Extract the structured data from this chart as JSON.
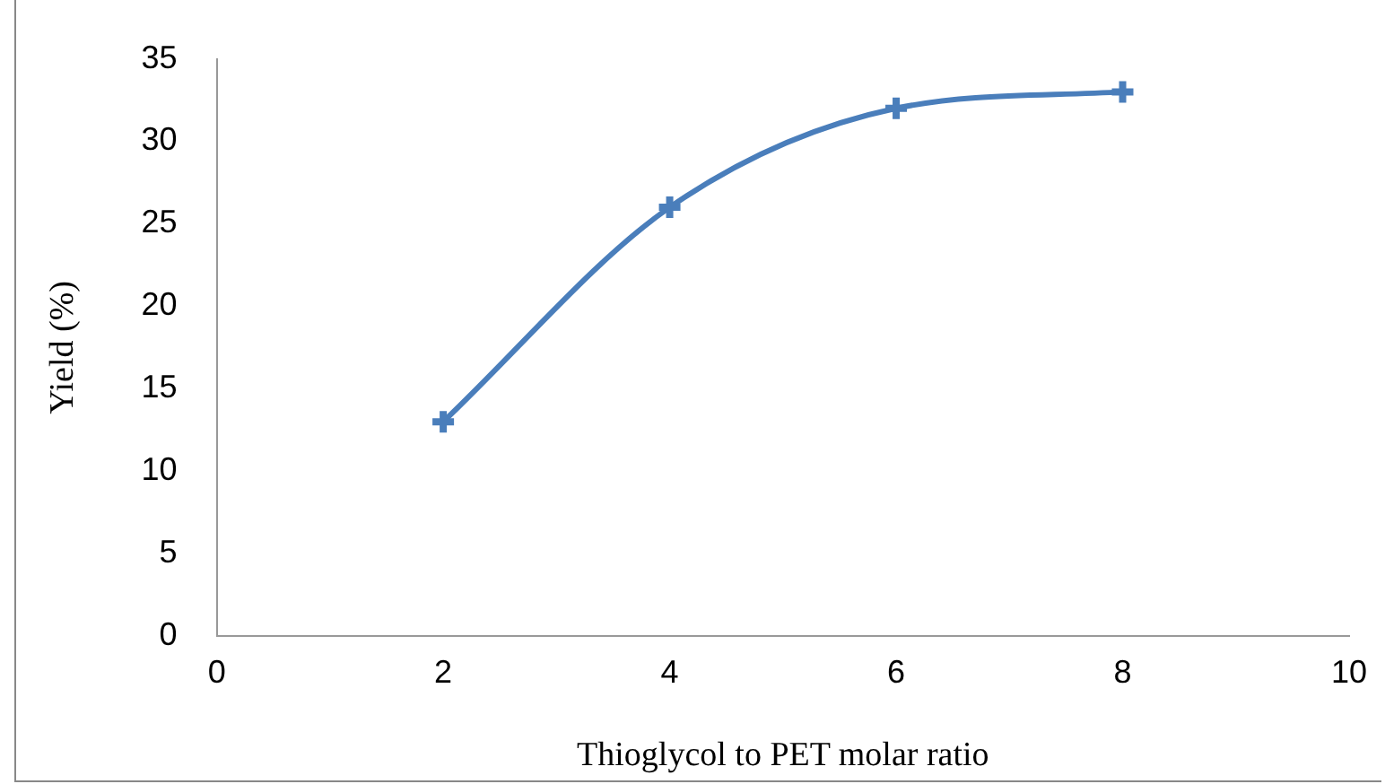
{
  "chart_data": {
    "type": "line",
    "xlabel": "Thioglycol to PET molar ratio",
    "ylabel": "Yield (%)",
    "x": [
      2,
      4,
      6,
      8
    ],
    "series": [
      {
        "color": "#4a7ebb",
        "values": [
          13,
          26,
          32,
          33
        ]
      }
    ],
    "xlim": [
      0,
      10
    ],
    "xticks": [
      0,
      2,
      4,
      6,
      8,
      10
    ],
    "ylim": [
      0,
      35
    ],
    "yticks": [
      0,
      5,
      10,
      15,
      20,
      25,
      30,
      35
    ],
    "grid": false,
    "legend": false,
    "marker": "cross",
    "line_style": "solid"
  }
}
